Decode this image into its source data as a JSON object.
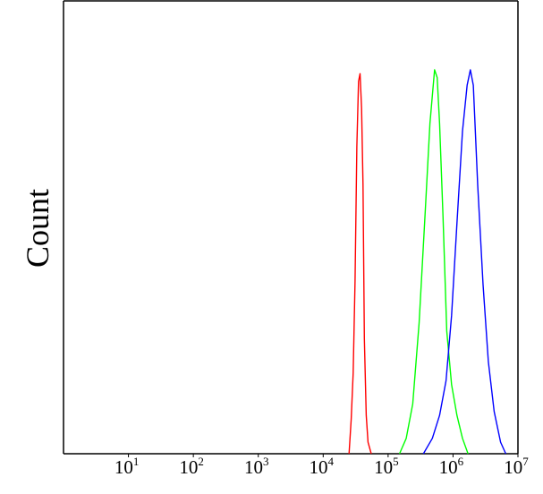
{
  "chart_data": {
    "type": "line",
    "title": "",
    "xlabel": "",
    "ylabel": "Count",
    "x_scale": "log",
    "xlim": [
      1,
      10000000
    ],
    "ylim": [
      0,
      1
    ],
    "grid": false,
    "legend": "none",
    "x_ticks": [
      {
        "base": "10",
        "exp": "1",
        "value": 10
      },
      {
        "base": "10",
        "exp": "2",
        "value": 100
      },
      {
        "base": "10",
        "exp": "3",
        "value": 1000
      },
      {
        "base": "10",
        "exp": "4",
        "value": 10000
      },
      {
        "base": "10",
        "exp": "5",
        "value": 100000
      },
      {
        "base": "10",
        "exp": "6",
        "value": 1000000
      },
      {
        "base": "10",
        "exp": "7",
        "value": 10000000
      }
    ],
    "series": [
      {
        "color": "#ff0000",
        "x": [
          25000,
          27000,
          29000,
          31000,
          33000,
          35000,
          37000,
          39000,
          41000,
          43000,
          46000,
          49000,
          55000
        ],
        "y": [
          0.0,
          0.09,
          0.21,
          0.45,
          0.8,
          0.97,
          0.99,
          0.9,
          0.7,
          0.3,
          0.1,
          0.03,
          0.0
        ]
      },
      {
        "color": "#00ff00",
        "x": [
          150000,
          190000,
          240000,
          300000,
          370000,
          440000,
          520000,
          570000,
          620000,
          700000,
          800000,
          950000,
          1150000,
          1400000,
          1700000
        ],
        "y": [
          0.0,
          0.04,
          0.13,
          0.34,
          0.62,
          0.86,
          1.0,
          0.98,
          0.86,
          0.62,
          0.32,
          0.18,
          0.1,
          0.04,
          0.0
        ]
      },
      {
        "color": "#0000ff",
        "x": [
          350000,
          480000,
          620000,
          780000,
          950000,
          1150000,
          1400000,
          1650000,
          1850000,
          2050000,
          2400000,
          2900000,
          3500000,
          4300000,
          5400000,
          6500000
        ],
        "y": [
          0.0,
          0.04,
          0.1,
          0.19,
          0.36,
          0.6,
          0.84,
          0.96,
          1.0,
          0.96,
          0.7,
          0.44,
          0.24,
          0.11,
          0.03,
          0.0
        ]
      }
    ]
  }
}
